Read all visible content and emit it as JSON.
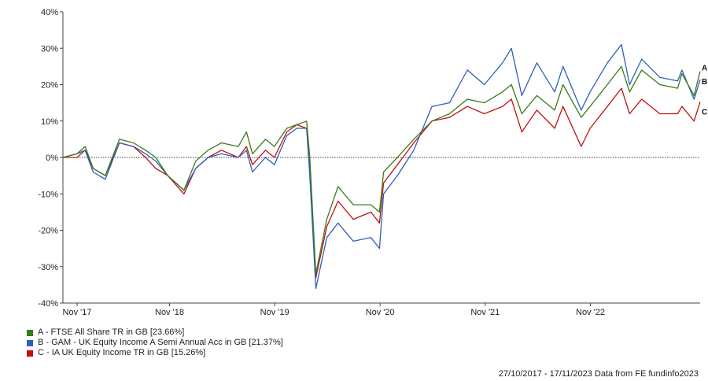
{
  "chart_data": {
    "type": "line",
    "x_ticks": [
      "Nov '17",
      "Nov '18",
      "Nov '19",
      "Nov '20",
      "Nov '21",
      "Nov '22"
    ],
    "y_ticks": [
      "40%",
      "30%",
      "20%",
      "10%",
      "0%",
      "-10%",
      "-20%",
      "-30%",
      "-40%"
    ],
    "ylim": [
      -40,
      40
    ],
    "xlim": [
      "2017-10-27",
      "2023-11-17"
    ],
    "grid": false,
    "zero_line": true,
    "legend_position": "bottom-left",
    "series": [
      {
        "key": "A",
        "name": "A - FTSE All Share TR in GB [23.66%]",
        "color": "#3a7a1a",
        "points": [
          [
            "2017-10-27",
            0
          ],
          [
            "2017-12-15",
            1
          ],
          [
            "2018-01-12",
            3
          ],
          [
            "2018-02-09",
            -3
          ],
          [
            "2018-03-23",
            -5
          ],
          [
            "2018-05-11",
            5
          ],
          [
            "2018-06-29",
            4
          ],
          [
            "2018-08-10",
            2
          ],
          [
            "2018-09-14",
            0
          ],
          [
            "2018-10-26",
            -5
          ],
          [
            "2018-12-21",
            -9
          ],
          [
            "2019-01-31",
            -1
          ],
          [
            "2019-03-15",
            2
          ],
          [
            "2019-04-30",
            4
          ],
          [
            "2019-06-28",
            3
          ],
          [
            "2019-07-26",
            7
          ],
          [
            "2019-08-16",
            1
          ],
          [
            "2019-09-30",
            5
          ],
          [
            "2019-10-31",
            3
          ],
          [
            "2019-12-13",
            8
          ],
          [
            "2020-01-17",
            9
          ],
          [
            "2020-02-20",
            10
          ],
          [
            "2020-03-02",
            0
          ],
          [
            "2020-03-23",
            -32
          ],
          [
            "2020-04-30",
            -17
          ],
          [
            "2020-06-08",
            -8
          ],
          [
            "2020-07-31",
            -13
          ],
          [
            "2020-09-30",
            -13
          ],
          [
            "2020-10-30",
            -15
          ],
          [
            "2020-11-13",
            -4
          ],
          [
            "2020-12-31",
            0
          ],
          [
            "2021-02-26",
            5
          ],
          [
            "2021-04-30",
            10
          ],
          [
            "2021-06-30",
            12
          ],
          [
            "2021-08-31",
            16
          ],
          [
            "2021-10-29",
            15
          ],
          [
            "2021-12-31",
            18
          ],
          [
            "2022-01-31",
            20
          ],
          [
            "2022-03-08",
            12
          ],
          [
            "2022-04-29",
            17
          ],
          [
            "2022-06-30",
            13
          ],
          [
            "2022-07-29",
            20
          ],
          [
            "2022-09-30",
            11
          ],
          [
            "2022-10-31",
            14
          ],
          [
            "2022-12-30",
            20
          ],
          [
            "2023-02-17",
            25
          ],
          [
            "2023-03-17",
            18
          ],
          [
            "2023-04-28",
            24
          ],
          [
            "2023-06-30",
            20
          ],
          [
            "2023-08-31",
            19
          ],
          [
            "2023-09-15",
            23
          ],
          [
            "2023-10-27",
            17
          ],
          [
            "2023-11-17",
            23.66
          ]
        ]
      },
      {
        "key": "B",
        "name": "B - GAM - UK Equity Income A Semi Annual Acc in GB [21.37%]",
        "color": "#2f5fb8",
        "points": [
          [
            "2017-10-27",
            0
          ],
          [
            "2017-12-15",
            1
          ],
          [
            "2018-01-12",
            2
          ],
          [
            "2018-02-09",
            -4
          ],
          [
            "2018-03-23",
            -6
          ],
          [
            "2018-05-11",
            4
          ],
          [
            "2018-06-29",
            3
          ],
          [
            "2018-08-10",
            1
          ],
          [
            "2018-09-14",
            -1
          ],
          [
            "2018-10-26",
            -5
          ],
          [
            "2018-12-21",
            -9
          ],
          [
            "2019-01-31",
            -3
          ],
          [
            "2019-03-15",
            0
          ],
          [
            "2019-04-30",
            1
          ],
          [
            "2019-06-28",
            0
          ],
          [
            "2019-07-26",
            2
          ],
          [
            "2019-08-16",
            -4
          ],
          [
            "2019-09-30",
            0
          ],
          [
            "2019-10-31",
            -2
          ],
          [
            "2019-12-13",
            6
          ],
          [
            "2020-01-17",
            8
          ],
          [
            "2020-02-20",
            8
          ],
          [
            "2020-03-02",
            -5
          ],
          [
            "2020-03-23",
            -36
          ],
          [
            "2020-04-30",
            -22
          ],
          [
            "2020-06-08",
            -18
          ],
          [
            "2020-07-31",
            -23
          ],
          [
            "2020-09-30",
            -22
          ],
          [
            "2020-10-30",
            -25
          ],
          [
            "2020-11-13",
            -10
          ],
          [
            "2020-12-31",
            -5
          ],
          [
            "2021-02-26",
            2
          ],
          [
            "2021-04-30",
            14
          ],
          [
            "2021-06-30",
            15
          ],
          [
            "2021-08-31",
            24
          ],
          [
            "2021-10-29",
            20
          ],
          [
            "2021-12-31",
            26
          ],
          [
            "2022-01-31",
            30
          ],
          [
            "2022-03-08",
            17
          ],
          [
            "2022-04-29",
            26
          ],
          [
            "2022-06-30",
            18
          ],
          [
            "2022-07-29",
            25
          ],
          [
            "2022-09-30",
            13
          ],
          [
            "2022-10-31",
            18
          ],
          [
            "2022-12-30",
            26
          ],
          [
            "2023-02-17",
            31
          ],
          [
            "2023-03-17",
            20
          ],
          [
            "2023-04-28",
            27
          ],
          [
            "2023-06-30",
            22
          ],
          [
            "2023-08-31",
            21
          ],
          [
            "2023-09-15",
            24
          ],
          [
            "2023-10-27",
            16
          ],
          [
            "2023-11-17",
            21.37
          ]
        ]
      },
      {
        "key": "C",
        "name": "C - IA UK Equity Income TR in GB [15.26%]",
        "color": "#c01010",
        "points": [
          [
            "2017-10-27",
            0
          ],
          [
            "2017-12-15",
            0
          ],
          [
            "2018-01-12",
            2
          ],
          [
            "2018-02-09",
            -3
          ],
          [
            "2018-03-23",
            -5
          ],
          [
            "2018-05-11",
            4
          ],
          [
            "2018-06-29",
            3
          ],
          [
            "2018-08-10",
            0
          ],
          [
            "2018-09-14",
            -3
          ],
          [
            "2018-10-26",
            -5
          ],
          [
            "2018-12-21",
            -10
          ],
          [
            "2019-01-31",
            -3
          ],
          [
            "2019-03-15",
            0
          ],
          [
            "2019-04-30",
            2
          ],
          [
            "2019-06-28",
            0
          ],
          [
            "2019-07-26",
            3
          ],
          [
            "2019-08-16",
            -2
          ],
          [
            "2019-09-30",
            2
          ],
          [
            "2019-10-31",
            0
          ],
          [
            "2019-12-13",
            7
          ],
          [
            "2020-01-17",
            9
          ],
          [
            "2020-02-20",
            8
          ],
          [
            "2020-03-02",
            -3
          ],
          [
            "2020-03-23",
            -33
          ],
          [
            "2020-04-30",
            -19
          ],
          [
            "2020-06-08",
            -12
          ],
          [
            "2020-07-31",
            -17
          ],
          [
            "2020-09-30",
            -15
          ],
          [
            "2020-10-30",
            -18
          ],
          [
            "2020-11-13",
            -7
          ],
          [
            "2020-12-31",
            -2
          ],
          [
            "2021-02-26",
            4
          ],
          [
            "2021-04-30",
            10
          ],
          [
            "2021-06-30",
            11
          ],
          [
            "2021-08-31",
            14
          ],
          [
            "2021-10-29",
            12
          ],
          [
            "2021-12-31",
            14
          ],
          [
            "2022-01-31",
            16
          ],
          [
            "2022-03-08",
            7
          ],
          [
            "2022-04-29",
            13
          ],
          [
            "2022-06-30",
            8
          ],
          [
            "2022-07-29",
            14
          ],
          [
            "2022-09-30",
            3
          ],
          [
            "2022-10-31",
            8
          ],
          [
            "2022-12-30",
            14
          ],
          [
            "2023-02-17",
            19
          ],
          [
            "2023-03-17",
            12
          ],
          [
            "2023-04-28",
            16
          ],
          [
            "2023-06-30",
            12
          ],
          [
            "2023-08-31",
            12
          ],
          [
            "2023-09-15",
            14
          ],
          [
            "2023-10-27",
            10
          ],
          [
            "2023-11-17",
            15.26
          ]
        ]
      }
    ]
  },
  "footer": {
    "text": "27/10/2017 - 17/11/2023 Data from FE fundinfo2023"
  }
}
